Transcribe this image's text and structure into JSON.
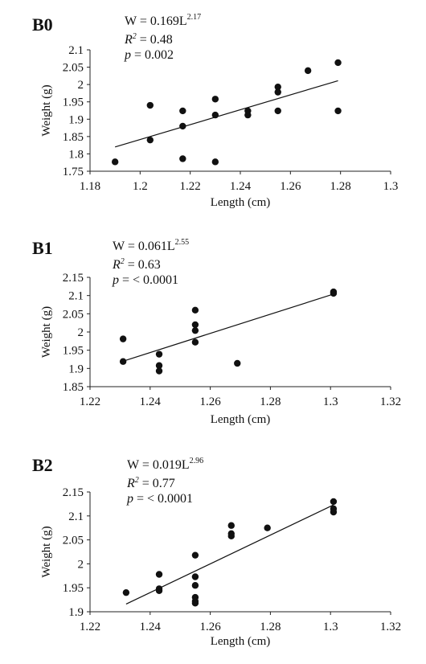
{
  "chart_data": [
    {
      "type": "scatter",
      "panel_label": "B0",
      "equation": {
        "prefix": "W = 0.169L",
        "exponent": "2.17"
      },
      "r2": {
        "label": "R",
        "sup": "2",
        "value": " = 0.48"
      },
      "p": {
        "label": "p",
        "value": " = 0.002"
      },
      "xlabel": "Length (cm)",
      "ylabel": "Weight (g)",
      "xlim": [
        1.18,
        1.3
      ],
      "ylim": [
        1.75,
        2.1
      ],
      "xticks": [
        "1.18",
        "1.2",
        "1.22",
        "1.24",
        "1.26",
        "1.28",
        "1.3"
      ],
      "yticks": [
        "1.75",
        "1.8",
        "1.85",
        "1.9",
        "1.95",
        "2",
        "2.05",
        "2.1"
      ],
      "points": [
        {
          "x": 1.19,
          "y": 1.777
        },
        {
          "x": 1.204,
          "y": 1.94
        },
        {
          "x": 1.204,
          "y": 1.84
        },
        {
          "x": 1.217,
          "y": 1.924
        },
        {
          "x": 1.217,
          "y": 1.88
        },
        {
          "x": 1.217,
          "y": 1.786
        },
        {
          "x": 1.23,
          "y": 1.958
        },
        {
          "x": 1.23,
          "y": 1.912
        },
        {
          "x": 1.23,
          "y": 1.777
        },
        {
          "x": 1.243,
          "y": 1.924
        },
        {
          "x": 1.243,
          "y": 1.912
        },
        {
          "x": 1.255,
          "y": 1.993
        },
        {
          "x": 1.255,
          "y": 1.978
        },
        {
          "x": 1.255,
          "y": 1.924
        },
        {
          "x": 1.267,
          "y": 2.04
        },
        {
          "x": 1.279,
          "y": 2.063
        },
        {
          "x": 1.279,
          "y": 1.924
        }
      ],
      "trendline": [
        {
          "x": 1.19,
          "y": 1.82
        },
        {
          "x": 1.279,
          "y": 2.011
        }
      ]
    },
    {
      "type": "scatter",
      "panel_label": "B1",
      "equation": {
        "prefix": "W = 0.061L",
        "exponent": "2.55"
      },
      "r2": {
        "label": "R",
        "sup": "2",
        "value": " = 0.63"
      },
      "p": {
        "label": "p",
        "value": " = < 0.0001"
      },
      "xlabel": "Length (cm)",
      "ylabel": "Weight (g)",
      "xlim": [
        1.22,
        1.32
      ],
      "ylim": [
        1.85,
        2.15
      ],
      "xticks": [
        "1.22",
        "1.24",
        "1.26",
        "1.28",
        "1.3",
        "1.32"
      ],
      "yticks": [
        "1.85",
        "1.9",
        "1.95",
        "2",
        "2.05",
        "2.1",
        "2.15"
      ],
      "points": [
        {
          "x": 1.231,
          "y": 1.981
        },
        {
          "x": 1.231,
          "y": 1.919
        },
        {
          "x": 1.243,
          "y": 1.939
        },
        {
          "x": 1.243,
          "y": 1.908
        },
        {
          "x": 1.243,
          "y": 1.893
        },
        {
          "x": 1.255,
          "y": 2.06
        },
        {
          "x": 1.255,
          "y": 2.02
        },
        {
          "x": 1.255,
          "y": 2.004
        },
        {
          "x": 1.255,
          "y": 1.972
        },
        {
          "x": 1.269,
          "y": 1.914
        },
        {
          "x": 1.301,
          "y": 2.11
        },
        {
          "x": 1.301,
          "y": 2.106
        }
      ],
      "trendline": [
        {
          "x": 1.231,
          "y": 1.92
        },
        {
          "x": 1.301,
          "y": 2.104
        }
      ]
    },
    {
      "type": "scatter",
      "panel_label": "B2",
      "equation": {
        "prefix": "W = 0.019L",
        "exponent": "2.96"
      },
      "r2": {
        "label": "R",
        "sup": "2",
        "value": " = 0.77"
      },
      "p": {
        "label": "p",
        "value": " = < 0.0001"
      },
      "xlabel": "Length (cm)",
      "ylabel": "Weight (g)",
      "xlim": [
        1.22,
        1.32
      ],
      "ylim": [
        1.9,
        2.15
      ],
      "xticks": [
        "1.22",
        "1.24",
        "1.26",
        "1.28",
        "1.3",
        "1.32"
      ],
      "yticks": [
        "1.9",
        "1.95",
        "2",
        "2.05",
        "2.1",
        "2.15"
      ],
      "points": [
        {
          "x": 1.232,
          "y": 1.94
        },
        {
          "x": 1.243,
          "y": 1.978
        },
        {
          "x": 1.243,
          "y": 1.948
        },
        {
          "x": 1.243,
          "y": 1.944
        },
        {
          "x": 1.255,
          "y": 2.018
        },
        {
          "x": 1.255,
          "y": 1.973
        },
        {
          "x": 1.255,
          "y": 1.955
        },
        {
          "x": 1.255,
          "y": 1.93
        },
        {
          "x": 1.255,
          "y": 1.922
        },
        {
          "x": 1.255,
          "y": 1.918
        },
        {
          "x": 1.267,
          "y": 2.08
        },
        {
          "x": 1.267,
          "y": 2.063
        },
        {
          "x": 1.267,
          "y": 2.058
        },
        {
          "x": 1.279,
          "y": 2.075
        },
        {
          "x": 1.301,
          "y": 2.13
        },
        {
          "x": 1.301,
          "y": 2.115
        },
        {
          "x": 1.301,
          "y": 2.108
        }
      ],
      "trendline": [
        {
          "x": 1.232,
          "y": 1.916
        },
        {
          "x": 1.301,
          "y": 2.123
        }
      ]
    }
  ]
}
